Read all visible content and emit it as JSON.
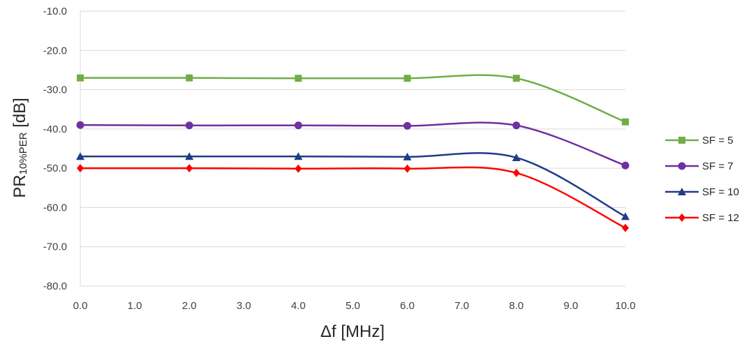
{
  "chart_data": {
    "type": "line",
    "title": "",
    "xlabel": "Δf [MHz]",
    "ylabel": {
      "main": "PR",
      "subscript": "10%PER",
      "unit": " [dB]"
    },
    "xlim": [
      0,
      10
    ],
    "ylim": [
      -80,
      -10
    ],
    "x_ticks": [
      "0.0",
      "1.0",
      "2.0",
      "3.0",
      "4.0",
      "5.0",
      "6.0",
      "7.0",
      "8.0",
      "9.0",
      "10.0"
    ],
    "y_ticks": [
      "-10.0",
      "-20.0",
      "-30.0",
      "-40.0",
      "-50.0",
      "-60.0",
      "-70.0",
      "-80.0"
    ],
    "grid": "horizontal",
    "legend_position": "right",
    "x": [
      0,
      2,
      4,
      6,
      8,
      10
    ],
    "series": [
      {
        "name": "SF = 5",
        "marker": "square",
        "color": "#70ad47",
        "values": [
          -27.0,
          -27.0,
          -27.1,
          -27.1,
          -27.1,
          -38.2
        ]
      },
      {
        "name": "SF = 7",
        "marker": "circle",
        "color": "#7030a0",
        "values": [
          -39.0,
          -39.1,
          -39.1,
          -39.2,
          -39.1,
          -49.3
        ]
      },
      {
        "name": "SF = 10",
        "marker": "triangle",
        "color": "#1f3c88",
        "values": [
          -47.0,
          -47.0,
          -47.0,
          -47.1,
          -47.3,
          -62.3
        ]
      },
      {
        "name": "SF = 12",
        "marker": "diamond",
        "color": "#ff0000",
        "values": [
          -50.0,
          -50.0,
          -50.1,
          -50.1,
          -51.2,
          -65.2
        ]
      }
    ]
  }
}
